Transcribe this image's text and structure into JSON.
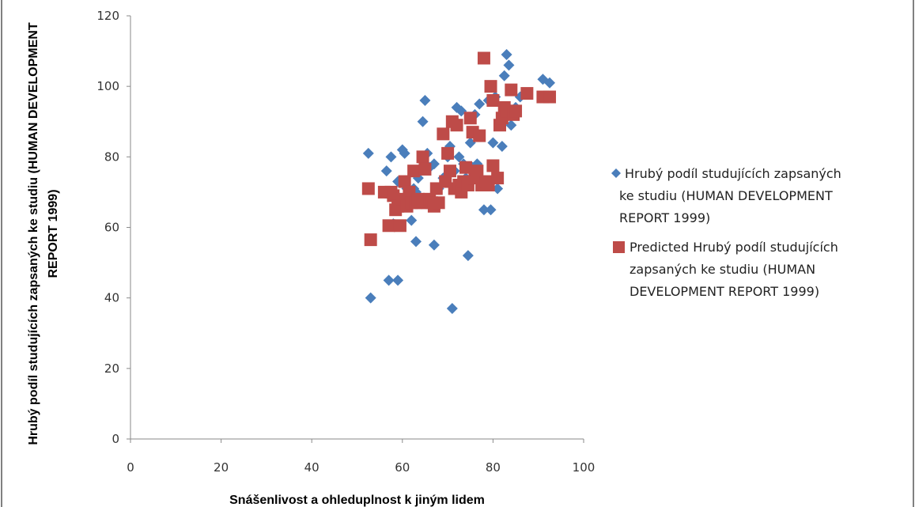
{
  "chart_data": {
    "type": "scatter",
    "xlabel": "Snášenlivost a ohleduplnost k jiným lidem",
    "ylabel_lines": [
      "Hrubý podíl studujících zapsaných ke studiu (HUMAN DEVELOPMENT",
      "REPORT 1999)"
    ],
    "xlim": [
      0,
      100
    ],
    "ylim": [
      0,
      120
    ],
    "x_ticks": [
      "0",
      "20",
      "40",
      "60",
      "80",
      "100"
    ],
    "y_ticks": [
      "0",
      "20",
      "40",
      "60",
      "80",
      "100",
      "120"
    ],
    "grid": false,
    "legend_position": "right",
    "series": [
      {
        "name_lines": [
          "Hrubý podíl studujících zapsaných",
          "ke studiu (HUMAN DEVELOPMENT",
          "REPORT 1999)"
        ],
        "marker": "diamond",
        "color": "#4a7ebb",
        "points": [
          [
            52.5,
            81
          ],
          [
            53,
            40
          ],
          [
            56.5,
            76
          ],
          [
            57,
            45
          ],
          [
            57.5,
            80
          ],
          [
            58,
            61
          ],
          [
            58.5,
            69
          ],
          [
            59,
            73
          ],
          [
            59,
            45
          ],
          [
            60,
            82
          ],
          [
            60.5,
            81
          ],
          [
            61,
            71
          ],
          [
            61.5,
            67
          ],
          [
            62,
            62
          ],
          [
            62.5,
            71
          ],
          [
            63,
            56
          ],
          [
            63,
            70
          ],
          [
            63.5,
            74
          ],
          [
            64,
            67
          ],
          [
            64.5,
            90
          ],
          [
            65,
            96
          ],
          [
            65.5,
            81
          ],
          [
            66,
            77
          ],
          [
            67,
            55
          ],
          [
            67,
            78
          ],
          [
            68,
            71
          ],
          [
            69,
            74
          ],
          [
            70,
            80
          ],
          [
            70.5,
            83
          ],
          [
            71,
            37
          ],
          [
            71.5,
            76
          ],
          [
            72,
            94
          ],
          [
            72.5,
            80
          ],
          [
            73,
            93
          ],
          [
            73.5,
            78
          ],
          [
            74,
            74
          ],
          [
            74.5,
            52
          ],
          [
            75,
            84
          ],
          [
            75.5,
            77
          ],
          [
            76,
            92
          ],
          [
            76.5,
            78
          ],
          [
            77,
            95
          ],
          [
            77.5,
            73
          ],
          [
            78,
            65
          ],
          [
            79,
            96
          ],
          [
            79.5,
            65
          ],
          [
            80,
            84
          ],
          [
            80.5,
            97
          ],
          [
            81,
            71
          ],
          [
            82,
            83
          ],
          [
            82.5,
            103
          ],
          [
            83,
            109
          ],
          [
            83.5,
            106
          ],
          [
            84,
            89
          ],
          [
            85,
            94
          ],
          [
            86,
            97
          ],
          [
            87,
            98
          ],
          [
            91,
            102
          ],
          [
            92.5,
            101
          ]
        ]
      },
      {
        "name_lines": [
          "Predicted Hrubý podíl studujících",
          "zapsaných ke studiu (HUMAN",
          "DEVELOPMENT REPORT 1999)"
        ],
        "marker": "square",
        "color": "#be4b48",
        "points": [
          [
            52.5,
            71
          ],
          [
            53,
            56.5
          ],
          [
            56,
            70
          ],
          [
            57,
            60.5
          ],
          [
            57.5,
            70
          ],
          [
            58,
            69
          ],
          [
            58.5,
            65
          ],
          [
            59,
            66
          ],
          [
            59.5,
            60.5
          ],
          [
            60,
            68
          ],
          [
            60.5,
            73
          ],
          [
            61,
            66
          ],
          [
            61.5,
            70
          ],
          [
            62,
            67
          ],
          [
            62.5,
            76
          ],
          [
            63,
            67
          ],
          [
            63.5,
            68
          ],
          [
            64,
            67
          ],
          [
            64.5,
            80
          ],
          [
            65,
            76.5
          ],
          [
            65.5,
            67
          ],
          [
            66,
            68
          ],
          [
            66.5,
            67
          ],
          [
            67,
            66
          ],
          [
            67.5,
            71
          ],
          [
            68,
            67
          ],
          [
            69,
            86.5
          ],
          [
            69.5,
            73
          ],
          [
            70,
            81
          ],
          [
            70.5,
            76
          ],
          [
            71,
            90
          ],
          [
            71.5,
            71
          ],
          [
            72,
            89
          ],
          [
            72.5,
            72
          ],
          [
            73,
            70
          ],
          [
            73.5,
            73
          ],
          [
            74,
            77
          ],
          [
            74.5,
            72
          ],
          [
            75,
            91
          ],
          [
            75.5,
            87
          ],
          [
            76,
            74
          ],
          [
            76.5,
            76
          ],
          [
            77,
            86
          ],
          [
            77.5,
            72
          ],
          [
            78,
            108
          ],
          [
            78.5,
            73
          ],
          [
            79,
            72
          ],
          [
            79.5,
            100
          ],
          [
            80,
            77.5
          ],
          [
            80,
            96
          ],
          [
            81,
            74
          ],
          [
            81.5,
            89
          ],
          [
            82,
            91
          ],
          [
            82.5,
            94
          ],
          [
            83,
            93
          ],
          [
            84,
            99
          ],
          [
            84.5,
            92
          ],
          [
            85,
            93
          ],
          [
            87.5,
            98
          ],
          [
            91,
            97
          ],
          [
            92.5,
            97
          ]
        ]
      }
    ]
  }
}
